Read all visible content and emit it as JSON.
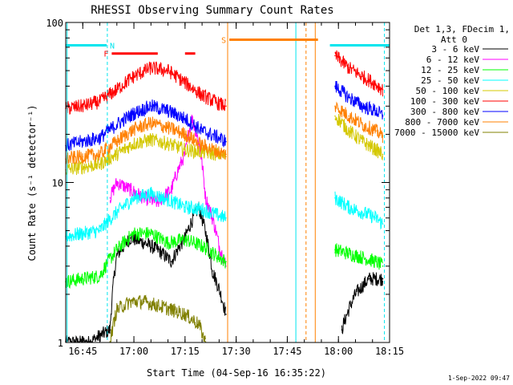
{
  "chart_data": {
    "type": "line",
    "title": "RHESSI Observing Summary Count Rates",
    "xlabel": "Start Time (04-Sep-16 16:35:22)",
    "ylabel": "Count Rate (s⁻¹ detector⁻¹)",
    "yscale": "log",
    "ylim": [
      1,
      100
    ],
    "xlim_minutes": [
      5,
      100
    ],
    "x_ticks": [
      {
        "min": 10,
        "label": "16:45"
      },
      {
        "min": 25,
        "label": "17:00"
      },
      {
        "min": 40,
        "label": "17:15"
      },
      {
        "min": 55,
        "label": "17:30"
      },
      {
        "min": 70,
        "label": "17:45"
      },
      {
        "min": 85,
        "label": "18:00"
      },
      {
        "min": 100,
        "label": "18:15"
      }
    ],
    "y_ticks": [
      {
        "value": 1,
        "label": "1"
      },
      {
        "value": 10,
        "label": "10"
      },
      {
        "value": 100,
        "label": "100"
      }
    ],
    "data_gaps_minutes": [
      [
        52.6,
        82.5
      ]
    ],
    "legend_header": [
      "Det 1,3, FDecim 1,",
      "Att 0"
    ],
    "legend_placement": "right",
    "series": [
      {
        "name": "3 - 6 keV",
        "color": "#000000",
        "x": [
          5,
          12,
          18,
          20,
          24,
          28,
          32,
          36,
          40,
          44,
          48,
          52,
          86,
          90,
          94,
          98
        ],
        "y": [
          1.0,
          1.0,
          1.2,
          3.5,
          4.5,
          4.2,
          3.8,
          3.2,
          4.5,
          7.0,
          2.8,
          1.5,
          1.2,
          2.0,
          2.5,
          2.5
        ]
      },
      {
        "name": "6 - 12 keV",
        "color": "#ff00ff",
        "x": [
          18,
          20,
          24,
          28,
          32,
          36,
          40,
          42,
          44,
          46,
          50,
          52
        ],
        "y": [
          8.0,
          10.0,
          9.0,
          8.0,
          7.5,
          9.0,
          15.0,
          25.0,
          18.0,
          8.0,
          4.0,
          3.0
        ]
      },
      {
        "name": "12 - 25 keV",
        "color": "#00ff00",
        "x": [
          5,
          10,
          15,
          20,
          25,
          30,
          35,
          40,
          45,
          50,
          52,
          84,
          88,
          92,
          96,
          98
        ],
        "y": [
          2.4,
          2.5,
          2.6,
          3.8,
          4.8,
          4.8,
          4.2,
          4.4,
          4.0,
          3.4,
          3.2,
          3.8,
          3.6,
          3.4,
          3.2,
          3.0
        ]
      },
      {
        "name": "25 - 50 keV",
        "color": "#00ffff",
        "x": [
          5,
          10,
          15,
          20,
          25,
          30,
          35,
          40,
          45,
          50,
          52,
          84,
          88,
          92,
          96,
          98
        ],
        "y": [
          4.6,
          4.8,
          5.0,
          6.5,
          8.0,
          8.5,
          7.8,
          7.0,
          6.8,
          6.2,
          6.0,
          8.0,
          7.0,
          6.5,
          6.0,
          5.5
        ]
      },
      {
        "name": "50 - 100 keV",
        "color": "#d4c800",
        "x": [
          5,
          10,
          15,
          20,
          25,
          30,
          35,
          40,
          45,
          50,
          52,
          84,
          88,
          92,
          96,
          98
        ],
        "y": [
          12.0,
          12.5,
          13.0,
          15.0,
          17.5,
          18.5,
          17.5,
          16.0,
          15.5,
          15.0,
          14.5,
          26.0,
          21.0,
          18.0,
          16.0,
          15.0
        ]
      },
      {
        "name": "100 - 300 keV",
        "color": "#ff0000",
        "x": [
          5,
          10,
          15,
          20,
          25,
          30,
          35,
          40,
          45,
          50,
          52,
          84,
          88,
          92,
          96,
          98
        ],
        "y": [
          29.0,
          30.0,
          32.0,
          38.0,
          46.0,
          52.0,
          50.0,
          42.0,
          35.0,
          31.0,
          30.0,
          62.0,
          52.0,
          46.0,
          41.0,
          38.0
        ]
      },
      {
        "name": "300 - 800 keV",
        "color": "#0000ff",
        "x": [
          5,
          10,
          15,
          20,
          25,
          30,
          35,
          40,
          45,
          50,
          52,
          84,
          88,
          92,
          96,
          98
        ],
        "y": [
          17.0,
          18.0,
          19.0,
          23.0,
          27.0,
          30.0,
          28.0,
          25.0,
          21.0,
          19.0,
          18.0,
          40.0,
          34.0,
          30.0,
          28.0,
          26.0
        ]
      },
      {
        "name": "800 - 7000 keV",
        "color": "#ff8000",
        "x": [
          5,
          10,
          15,
          20,
          25,
          30,
          35,
          40,
          45,
          50,
          52,
          84,
          88,
          92,
          96,
          98
        ],
        "y": [
          14.0,
          14.5,
          15.0,
          18.0,
          21.5,
          23.5,
          22.0,
          20.0,
          17.0,
          15.5,
          15.0,
          30.0,
          26.0,
          23.0,
          21.0,
          19.5
        ]
      },
      {
        "name": "7000 - 15000 keV",
        "color": "#808000",
        "x": [
          18,
          20,
          24,
          28,
          32,
          36,
          40,
          44,
          46
        ],
        "y": [
          1.0,
          1.6,
          1.8,
          1.8,
          1.7,
          1.6,
          1.5,
          1.3,
          1.0
        ]
      }
    ],
    "annotations": [
      {
        "type": "hbar",
        "label": "N",
        "color": "#00e5ee",
        "x_start": 5,
        "x_end": 17,
        "y": 72
      },
      {
        "type": "hbar",
        "label": "",
        "color": "#00e5ee",
        "x_start": 82.5,
        "x_end": 100,
        "y": 72
      },
      {
        "type": "hbar",
        "label": "F",
        "color": "#ff0000",
        "x_start": 18.5,
        "x_end": 32,
        "y": 64
      },
      {
        "type": "hbar",
        "label": "",
        "color": "#ff0000",
        "x_start": 40,
        "x_end": 43,
        "y": 64
      },
      {
        "type": "hbar",
        "label": "S",
        "color": "#ff8000",
        "x_start": 53,
        "x_end": 79,
        "y": 78
      }
    ],
    "vertical_markers": [
      {
        "x": 5.4,
        "color": "#00e5ee",
        "style": "solid"
      },
      {
        "x": 17.2,
        "color": "#00e5ee",
        "style": "dashed"
      },
      {
        "x": 52.5,
        "color": "#ff8000",
        "style": "solid"
      },
      {
        "x": 72.5,
        "color": "#00e5ee",
        "style": "solid"
      },
      {
        "x": 75.5,
        "color": "#ff8000",
        "style": "dashed"
      },
      {
        "x": 78.2,
        "color": "#ff8000",
        "style": "solid"
      },
      {
        "x": 98.5,
        "color": "#00e5ee",
        "style": "dashed"
      }
    ]
  },
  "footer_timestamp": "1-Sep-2022 09:47"
}
